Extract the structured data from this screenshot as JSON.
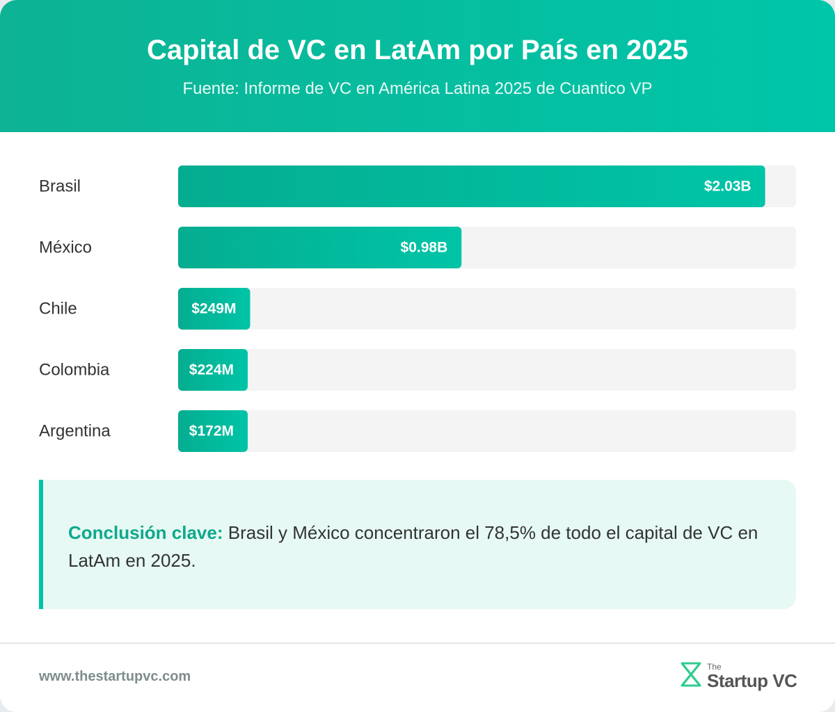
{
  "chart_data": {
    "type": "bar",
    "orientation": "horizontal",
    "title": "Capital de VC en LatAm por País en 2025",
    "subtitle": "Fuente: Informe de VC en América Latina 2025 de Cuantico VP",
    "categories": [
      "Brasil",
      "México",
      "Chile",
      "Colombia",
      "Argentina"
    ],
    "values": [
      2030,
      980,
      249,
      224,
      172
    ],
    "value_labels": [
      "$2.03B",
      "$0.98B",
      "$249M",
      "$224M",
      "$172M"
    ],
    "color": "#00c4a7"
  },
  "callout": {
    "label": "Conclusión clave:",
    "text": "Brasil y México concentraron el 78,5% de todo el capital de VC en LatAm en 2025."
  },
  "footer": {
    "url": "www.thestartupvc.com",
    "logo_small": "The",
    "logo": "Startup VC"
  }
}
